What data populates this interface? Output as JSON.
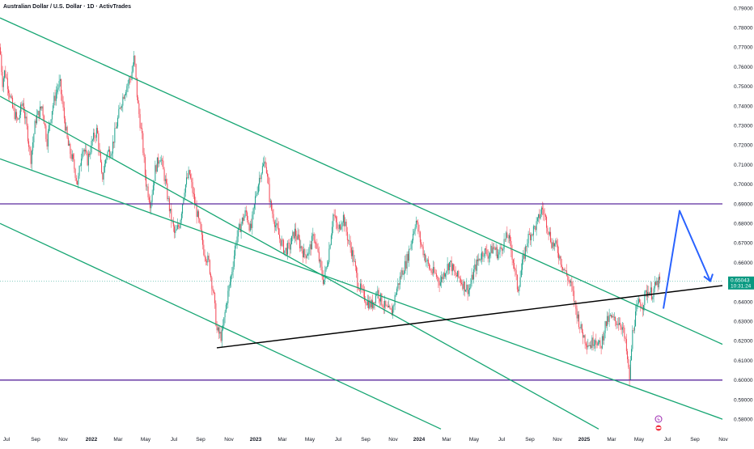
{
  "header": {
    "title": "Australian Dollar / U.S. Dollar · 1D · ActivTrades"
  },
  "price_badge": {
    "price": "0.65043",
    "countdown": "10:31:24",
    "color": "#089981"
  },
  "colors": {
    "channel": "#17a673",
    "horizontal": "#5b2a9e",
    "trendline": "#000000",
    "forecast": "#2962ff",
    "candle_up": "#089981",
    "candle_down": "#f23645"
  },
  "chart_data": {
    "type": "candlestick",
    "y_axis": {
      "ticks": [
        "0.79000",
        "0.78000",
        "0.77000",
        "0.76000",
        "0.75000",
        "0.74000",
        "0.73000",
        "0.72000",
        "0.71000",
        "0.70000",
        "0.69000",
        "0.68000",
        "0.67000",
        "0.66000",
        "0.65000",
        "0.64000",
        "0.63000",
        "0.62000",
        "0.61000",
        "0.60000",
        "0.59000",
        "0.58000"
      ],
      "min": 0.575,
      "max": 0.794
    },
    "x_axis": {
      "ticks": [
        {
          "label": "Jul",
          "major": false
        },
        {
          "label": "Sep",
          "major": false
        },
        {
          "label": "Nov",
          "major": false
        },
        {
          "label": "2022",
          "major": true
        },
        {
          "label": "Mar",
          "major": false
        },
        {
          "label": "May",
          "major": false
        },
        {
          "label": "Jul",
          "major": false
        },
        {
          "label": "Sep",
          "major": false
        },
        {
          "label": "Nov",
          "major": false
        },
        {
          "label": "2023",
          "major": true
        },
        {
          "label": "Mar",
          "major": false
        },
        {
          "label": "May",
          "major": false
        },
        {
          "label": "Jul",
          "major": false
        },
        {
          "label": "Sep",
          "major": false
        },
        {
          "label": "Nov",
          "major": false
        },
        {
          "label": "2024",
          "major": true
        },
        {
          "label": "Mar",
          "major": false
        },
        {
          "label": "May",
          "major": false
        },
        {
          "label": "Jul",
          "major": false
        },
        {
          "label": "Sep",
          "major": false
        },
        {
          "label": "Nov",
          "major": false
        },
        {
          "label": "2025",
          "major": true
        },
        {
          "label": "Mar",
          "major": false
        },
        {
          "label": "May",
          "major": false
        },
        {
          "label": "Jul",
          "major": false
        },
        {
          "label": "Sep",
          "major": false
        },
        {
          "label": "Nov",
          "major": false
        }
      ]
    },
    "price_path": [
      [
        0,
        0.77
      ],
      [
        3,
        0.752
      ],
      [
        6,
        0.758
      ],
      [
        10,
        0.75
      ],
      [
        16,
        0.738
      ],
      [
        22,
        0.732
      ],
      [
        28,
        0.742
      ],
      [
        34,
        0.726
      ],
      [
        38,
        0.713
      ],
      [
        44,
        0.733
      ],
      [
        52,
        0.74
      ],
      [
        58,
        0.722
      ],
      [
        64,
        0.738
      ],
      [
        70,
        0.748
      ],
      [
        74,
        0.752
      ],
      [
        78,
        0.738
      ],
      [
        84,
        0.72
      ],
      [
        90,
        0.712
      ],
      [
        96,
        0.7
      ],
      [
        102,
        0.72
      ],
      [
        108,
        0.712
      ],
      [
        114,
        0.722
      ],
      [
        120,
        0.728
      ],
      [
        126,
        0.702
      ],
      [
        132,
        0.716
      ],
      [
        138,
        0.718
      ],
      [
        144,
        0.73
      ],
      [
        150,
        0.742
      ],
      [
        156,
        0.75
      ],
      [
        162,
        0.755
      ],
      [
        166,
        0.765
      ],
      [
        170,
        0.742
      ],
      [
        176,
        0.722
      ],
      [
        180,
        0.702
      ],
      [
        186,
        0.69
      ],
      [
        192,
        0.708
      ],
      [
        198,
        0.715
      ],
      [
        204,
        0.702
      ],
      [
        210,
        0.686
      ],
      [
        216,
        0.674
      ],
      [
        222,
        0.68
      ],
      [
        228,
        0.698
      ],
      [
        234,
        0.706
      ],
      [
        240,
        0.692
      ],
      [
        246,
        0.68
      ],
      [
        252,
        0.666
      ],
      [
        258,
        0.66
      ],
      [
        264,
        0.644
      ],
      [
        268,
        0.625
      ],
      [
        274,
        0.622
      ],
      [
        280,
        0.64
      ],
      [
        286,
        0.654
      ],
      [
        292,
        0.672
      ],
      [
        298,
        0.68
      ],
      [
        304,
        0.686
      ],
      [
        310,
        0.676
      ],
      [
        316,
        0.694
      ],
      [
        322,
        0.706
      ],
      [
        328,
        0.712
      ],
      [
        334,
        0.69
      ],
      [
        340,
        0.68
      ],
      [
        346,
        0.672
      ],
      [
        352,
        0.666
      ],
      [
        358,
        0.668
      ],
      [
        364,
        0.676
      ],
      [
        370,
        0.67
      ],
      [
        376,
        0.664
      ],
      [
        382,
        0.666
      ],
      [
        388,
        0.674
      ],
      [
        394,
        0.662
      ],
      [
        400,
        0.65
      ],
      [
        406,
        0.664
      ],
      [
        412,
        0.685
      ],
      [
        418,
        0.676
      ],
      [
        424,
        0.684
      ],
      [
        430,
        0.672
      ],
      [
        436,
        0.664
      ],
      [
        442,
        0.65
      ],
      [
        448,
        0.644
      ],
      [
        454,
        0.64
      ],
      [
        460,
        0.638
      ],
      [
        466,
        0.646
      ],
      [
        472,
        0.64
      ],
      [
        478,
        0.636
      ],
      [
        484,
        0.634
      ],
      [
        490,
        0.646
      ],
      [
        496,
        0.654
      ],
      [
        502,
        0.66
      ],
      [
        508,
        0.67
      ],
      [
        514,
        0.682
      ],
      [
        520,
        0.67
      ],
      [
        526,
        0.662
      ],
      [
        532,
        0.656
      ],
      [
        538,
        0.654
      ],
      [
        544,
        0.65
      ],
      [
        550,
        0.656
      ],
      [
        556,
        0.66
      ],
      [
        562,
        0.654
      ],
      [
        568,
        0.652
      ],
      [
        574,
        0.648
      ],
      [
        580,
        0.646
      ],
      [
        586,
        0.656
      ],
      [
        592,
        0.662
      ],
      [
        598,
        0.666
      ],
      [
        604,
        0.664
      ],
      [
        610,
        0.668
      ],
      [
        616,
        0.664
      ],
      [
        622,
        0.67
      ],
      [
        628,
        0.674
      ],
      [
        634,
        0.662
      ],
      [
        640,
        0.646
      ],
      [
        646,
        0.66
      ],
      [
        652,
        0.672
      ],
      [
        658,
        0.676
      ],
      [
        664,
        0.68
      ],
      [
        670,
        0.688
      ],
      [
        676,
        0.68
      ],
      [
        682,
        0.67
      ],
      [
        688,
        0.668
      ],
      [
        694,
        0.66
      ],
      [
        700,
        0.654
      ],
      [
        706,
        0.648
      ],
      [
        712,
        0.636
      ],
      [
        718,
        0.626
      ],
      [
        724,
        0.62
      ],
      [
        730,
        0.618
      ],
      [
        736,
        0.622
      ],
      [
        742,
        0.616
      ],
      [
        748,
        0.628
      ],
      [
        754,
        0.632
      ],
      [
        760,
        0.63
      ],
      [
        766,
        0.63
      ],
      [
        770,
        0.626
      ],
      [
        774,
        0.616
      ],
      [
        778,
        0.6
      ],
      [
        782,
        0.625
      ],
      [
        786,
        0.634
      ],
      [
        790,
        0.64
      ],
      [
        794,
        0.638
      ],
      [
        798,
        0.644
      ],
      [
        802,
        0.646
      ],
      [
        806,
        0.644
      ],
      [
        810,
        0.648
      ],
      [
        814,
        0.65
      ]
    ],
    "horizontal_levels": [
      0.69,
      0.6
    ],
    "channel_lines": [
      {
        "x1": 0,
        "y1": 0.785,
        "x2": 900,
        "y2": 0.617
      },
      {
        "x1": 0,
        "y1": 0.745,
        "x2": 740,
        "y2": 0.575
      },
      {
        "x1": 0,
        "y1": 0.713,
        "x2": 900,
        "y2": 0.579
      },
      {
        "x1": 0,
        "y1": 0.68,
        "x2": 545,
        "y2": 0.575
      }
    ],
    "trendline": {
      "x1": 268,
      "y1": 0.6165,
      "x2": 898,
      "y2": 0.6485
    },
    "forecast": [
      [
        820,
        0.6365
      ],
      [
        840,
        0.6865
      ],
      [
        878,
        0.6505
      ]
    ],
    "grid": false
  }
}
